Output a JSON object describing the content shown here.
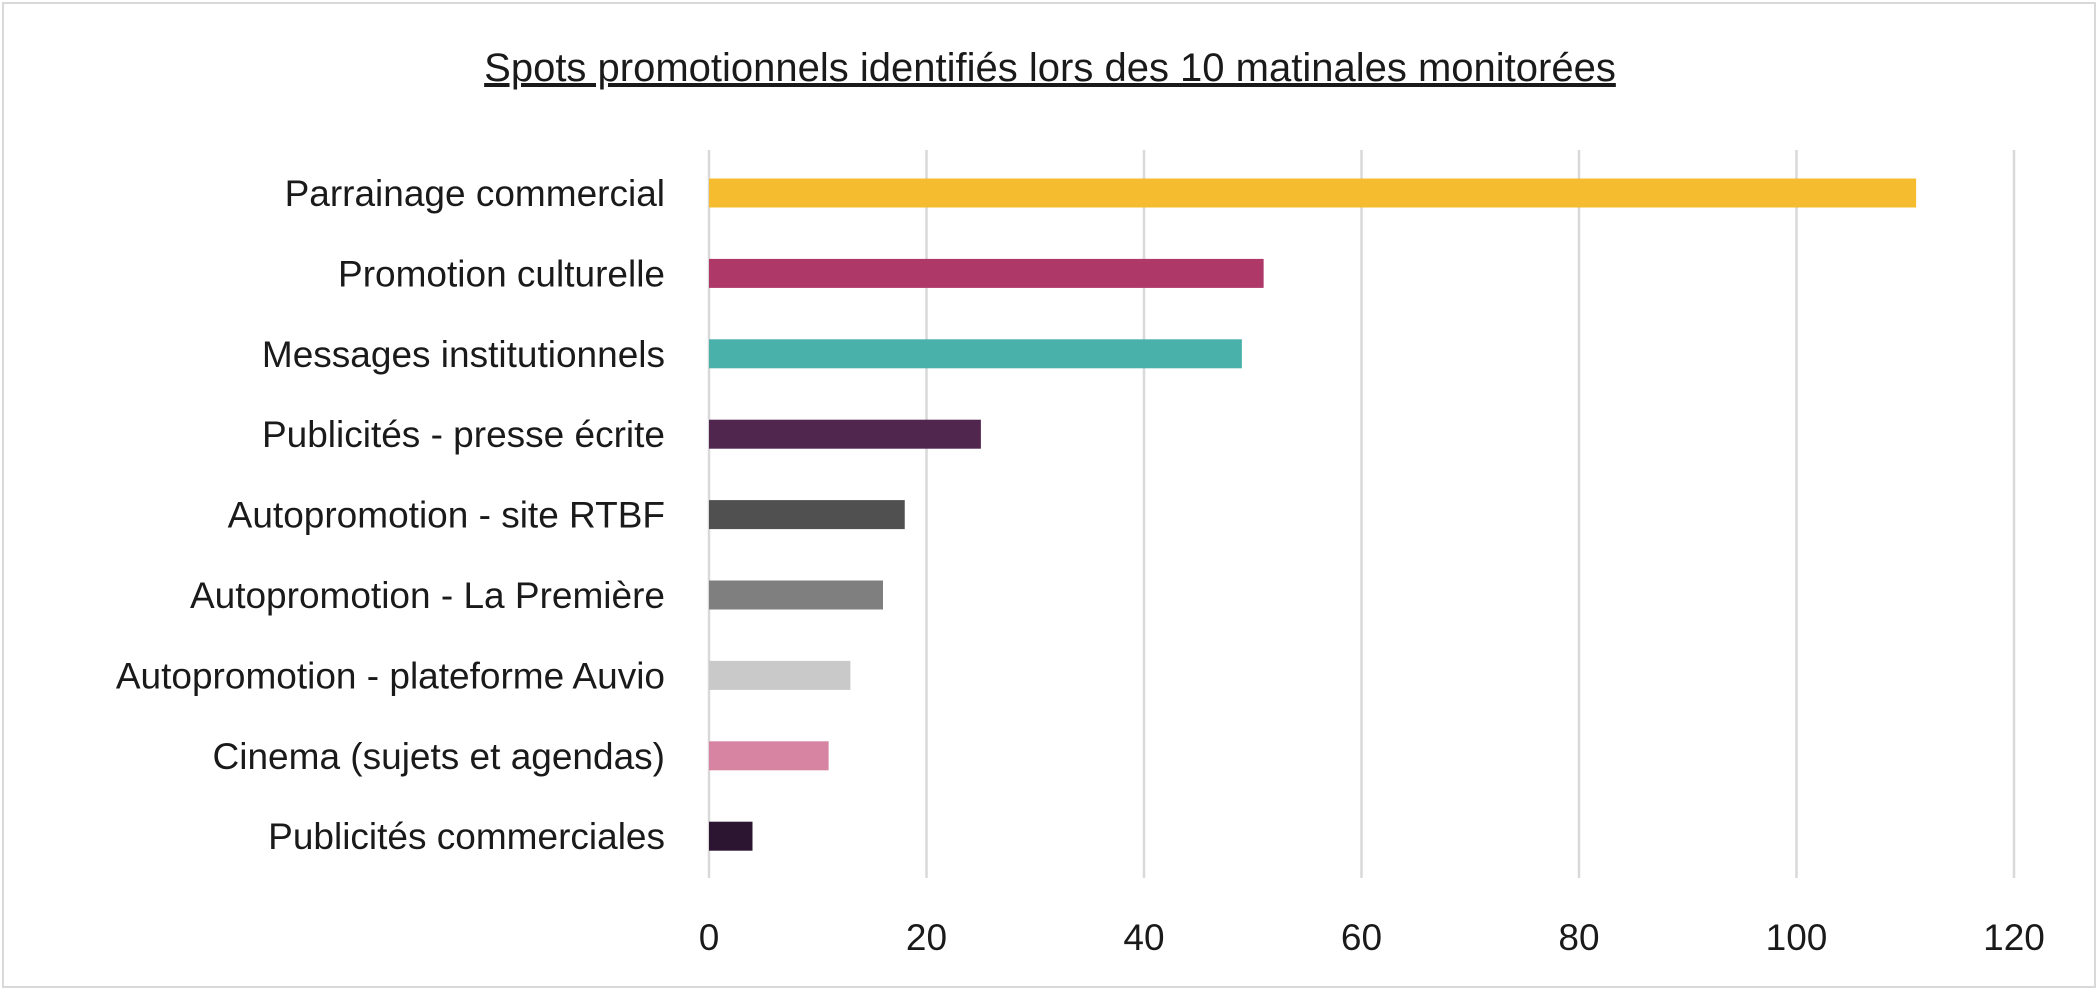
{
  "chart_data": {
    "type": "bar",
    "orientation": "horizontal",
    "title": "Spots promotionnels identifiés lors des 10 matinales monitorées",
    "xlabel": "",
    "ylabel": "",
    "categories": [
      "Parrainage commercial",
      "Promotion culturelle",
      "Messages institutionnels",
      "Publicités - presse écrite",
      "Autopromotion - site RTBF",
      "Autopromotion - La Première",
      "Autopromotion - plateforme Auvio",
      "Cinema (sujets et agendas)",
      "Publicités commerciales"
    ],
    "values": [
      111,
      51,
      49,
      25,
      18,
      16,
      13,
      11,
      4
    ],
    "colors": [
      "#F4BC2E",
      "#AE3868",
      "#4AB0AA",
      "#50264F",
      "#505050",
      "#7F7F7F",
      "#C9C9C9",
      "#D684A2",
      "#2C1530"
    ],
    "xlim": [
      0,
      120
    ],
    "xticks": [
      0,
      20,
      40,
      60,
      80,
      100,
      120
    ],
    "grid": true,
    "legend": "none"
  }
}
